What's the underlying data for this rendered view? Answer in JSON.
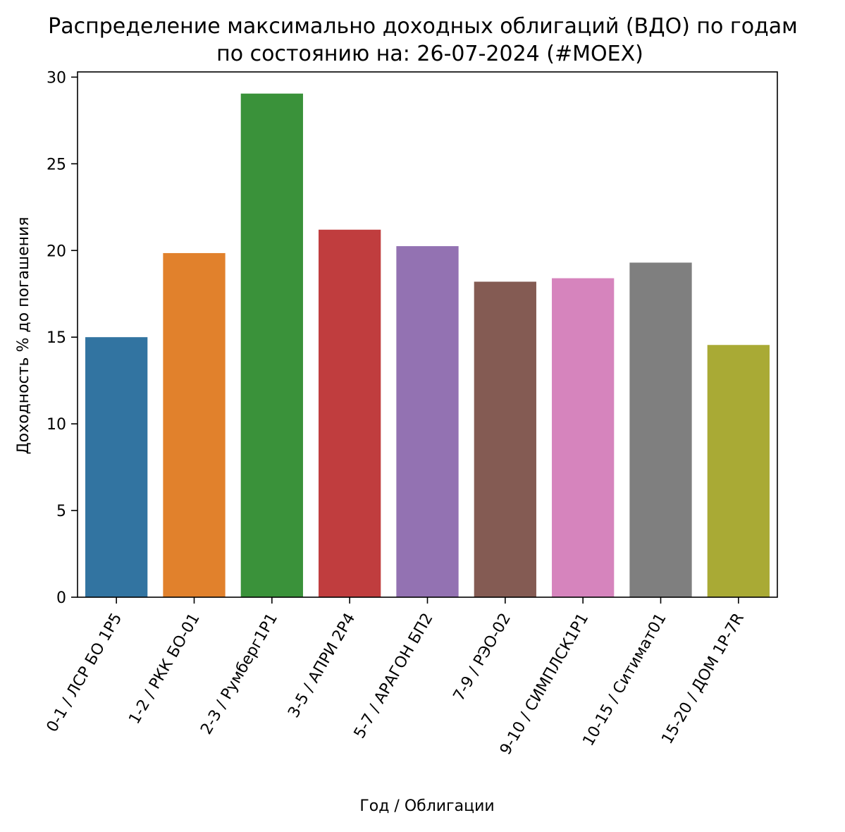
{
  "chart_data": {
    "type": "bar",
    "title": "Распределение максимально доходных облигаций (ВДО) по годам",
    "subtitle": "по состоянию на: 26-07-2024 (#MOEX)",
    "xlabel": "Год / Облигации",
    "ylabel": "Доходность % до погашения",
    "ylim": [
      0,
      30.3
    ],
    "yticks": [
      0,
      5,
      10,
      15,
      20,
      25,
      30
    ],
    "grid": false,
    "categories": [
      "0-1 / ЛСР БО 1P5",
      "1-2 / РКК БО-01",
      "2-3 / Румберг1P1",
      "3-5 / АПРИ 2P4",
      "5-7 / АРАГОН БП2",
      "7-9 / РЭО-02",
      "9-10 / СИМПЛСК1P1",
      "10-15 / Ситимат01",
      "15-20 / ДОМ 1P-7R"
    ],
    "values": [
      15.0,
      19.85,
      29.05,
      21.2,
      20.25,
      18.2,
      18.4,
      19.3,
      14.55
    ],
    "colors": [
      "#3274a1",
      "#e1812c",
      "#3a923a",
      "#c03d3e",
      "#9372b2",
      "#845b53",
      "#d684bd",
      "#7f7f7f",
      "#a9aa35"
    ]
  }
}
